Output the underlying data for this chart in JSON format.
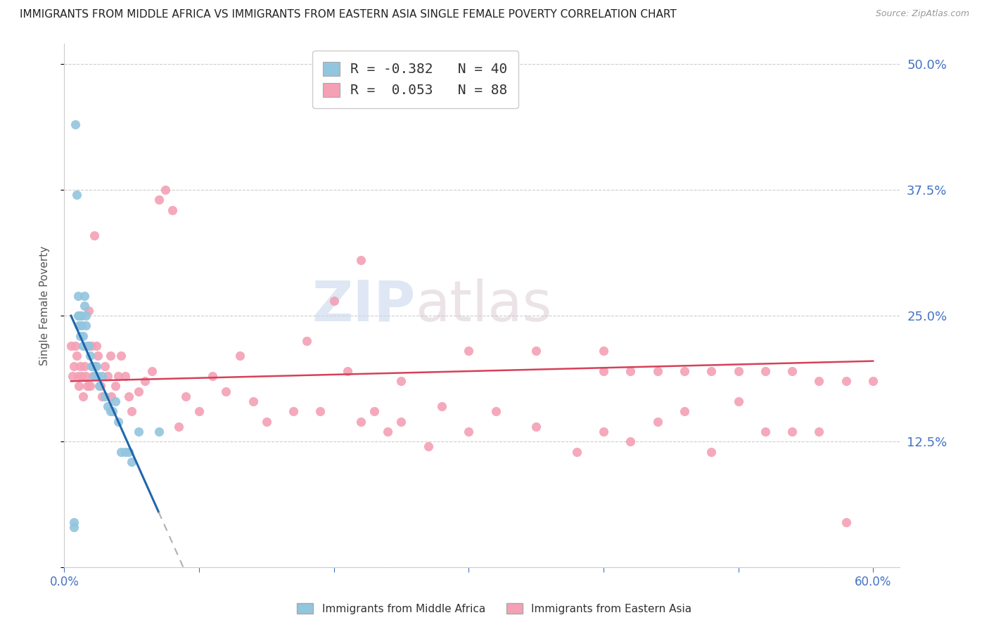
{
  "title": "IMMIGRANTS FROM MIDDLE AFRICA VS IMMIGRANTS FROM EASTERN ASIA SINGLE FEMALE POVERTY CORRELATION CHART",
  "source": "Source: ZipAtlas.com",
  "ylabel": "Single Female Poverty",
  "xlim": [
    0.0,
    0.62
  ],
  "ylim": [
    0.0,
    0.52
  ],
  "series1_color": "#92c5de",
  "series2_color": "#f4a0b5",
  "trendline1_color": "#2166ac",
  "trendline2_color": "#d6405a",
  "watermark_zip": "ZIP",
  "watermark_atlas": "atlas",
  "series1_name": "Immigrants from Middle Africa",
  "series2_name": "Immigrants from Eastern Asia",
  "legend1_label": "R = -0.382   N = 40",
  "legend2_label": "R =  0.053   N = 88",
  "series1_x": [
    0.007,
    0.007,
    0.008,
    0.009,
    0.01,
    0.01,
    0.011,
    0.011,
    0.012,
    0.012,
    0.013,
    0.013,
    0.014,
    0.014,
    0.015,
    0.015,
    0.016,
    0.016,
    0.017,
    0.018,
    0.019,
    0.02,
    0.021,
    0.022,
    0.024,
    0.025,
    0.026,
    0.028,
    0.03,
    0.032,
    0.034,
    0.036,
    0.038,
    0.04,
    0.042,
    0.045,
    0.048,
    0.05,
    0.055,
    0.07
  ],
  "series1_y": [
    0.045,
    0.04,
    0.44,
    0.37,
    0.27,
    0.25,
    0.25,
    0.24,
    0.25,
    0.23,
    0.25,
    0.24,
    0.23,
    0.22,
    0.27,
    0.26,
    0.25,
    0.24,
    0.22,
    0.22,
    0.21,
    0.2,
    0.2,
    0.19,
    0.2,
    0.19,
    0.18,
    0.19,
    0.17,
    0.16,
    0.155,
    0.155,
    0.165,
    0.145,
    0.115,
    0.115,
    0.115,
    0.105,
    0.135,
    0.135
  ],
  "series2_x": [
    0.005,
    0.006,
    0.007,
    0.008,
    0.009,
    0.01,
    0.011,
    0.012,
    0.013,
    0.014,
    0.015,
    0.016,
    0.017,
    0.018,
    0.019,
    0.02,
    0.021,
    0.022,
    0.023,
    0.024,
    0.025,
    0.027,
    0.028,
    0.03,
    0.032,
    0.034,
    0.035,
    0.038,
    0.04,
    0.042,
    0.045,
    0.048,
    0.05,
    0.055,
    0.06,
    0.065,
    0.07,
    0.075,
    0.08,
    0.085,
    0.09,
    0.1,
    0.11,
    0.12,
    0.13,
    0.14,
    0.15,
    0.17,
    0.18,
    0.19,
    0.2,
    0.21,
    0.22,
    0.23,
    0.24,
    0.25,
    0.27,
    0.28,
    0.3,
    0.32,
    0.35,
    0.38,
    0.4,
    0.42,
    0.44,
    0.46,
    0.48,
    0.5,
    0.52,
    0.54,
    0.56,
    0.58,
    0.4,
    0.42,
    0.44,
    0.46,
    0.48,
    0.5,
    0.52,
    0.54,
    0.56,
    0.58,
    0.6,
    0.22,
    0.25,
    0.3,
    0.35,
    0.4
  ],
  "series2_y": [
    0.22,
    0.19,
    0.2,
    0.22,
    0.21,
    0.19,
    0.18,
    0.2,
    0.19,
    0.17,
    0.2,
    0.19,
    0.18,
    0.255,
    0.18,
    0.22,
    0.19,
    0.33,
    0.2,
    0.22,
    0.21,
    0.18,
    0.17,
    0.2,
    0.19,
    0.21,
    0.17,
    0.18,
    0.19,
    0.21,
    0.19,
    0.17,
    0.155,
    0.175,
    0.185,
    0.195,
    0.365,
    0.375,
    0.355,
    0.14,
    0.17,
    0.155,
    0.19,
    0.175,
    0.21,
    0.165,
    0.145,
    0.155,
    0.225,
    0.155,
    0.265,
    0.195,
    0.145,
    0.155,
    0.135,
    0.145,
    0.12,
    0.16,
    0.135,
    0.155,
    0.14,
    0.115,
    0.135,
    0.125,
    0.145,
    0.155,
    0.115,
    0.165,
    0.135,
    0.135,
    0.135,
    0.045,
    0.215,
    0.195,
    0.195,
    0.195,
    0.195,
    0.195,
    0.195,
    0.195,
    0.185,
    0.185,
    0.185,
    0.305,
    0.185,
    0.215,
    0.215,
    0.195
  ],
  "trendline1_x_solid_start": 0.005,
  "trendline1_x_solid_end": 0.07,
  "trendline1_x_dash_end": 0.28,
  "trendline1_y_at_0": 0.265,
  "trendline1_slope": -3.0,
  "trendline2_x_start": 0.005,
  "trendline2_x_end": 0.6,
  "trendline2_y_start": 0.185,
  "trendline2_y_end": 0.205,
  "background_color": "#ffffff",
  "grid_color": "#cccccc",
  "title_fontsize": 11,
  "axis_label_color": "#4472c4"
}
